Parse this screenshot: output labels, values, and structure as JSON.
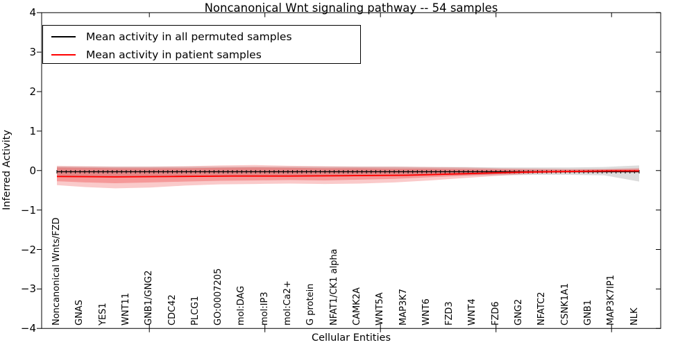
{
  "chart_data": {
    "type": "line",
    "title": "Noncanonical Wnt signaling pathway -- 54 samples",
    "xlabel": "Cellular Entities",
    "ylabel": "Inferred Activity",
    "ylim": [
      -4,
      4
    ],
    "ytick_values": [
      4,
      3,
      2,
      1,
      0,
      -1,
      -2,
      -3,
      -4
    ],
    "ytick_labels": [
      "4",
      "3",
      "2",
      "1",
      "0",
      "−1",
      "−2",
      "−3",
      "−4"
    ],
    "categories": [
      "Noncanonical Wnts/FZD",
      "GNAS",
      "YES1",
      "WNT11",
      "GNB1/GNG2",
      "CDC42",
      "PLCG1",
      "GO:0007205",
      "mol:DAG",
      "mol:IP3",
      "mol:Ca2+",
      "G protein",
      "NFAT1/CK1 alpha",
      "CAMK2A",
      "WNT5A",
      "MAP3K7",
      "WNT6",
      "FZD3",
      "WNT4",
      "FZD6",
      "GNG2",
      "NFATC2",
      "CSNK1A1",
      "GNB1",
      "MAP3K7IP1",
      "NLK"
    ],
    "major_tick_category_indices": [
      4,
      9,
      14,
      19,
      24
    ],
    "grid": false,
    "legend_position": "upper left",
    "series": [
      {
        "name": "Mean activity in all permuted samples",
        "color": "#000000",
        "marker": "+",
        "n_marker_points": 127,
        "t": [
          0,
          1
        ],
        "values": [
          -0.03,
          -0.03
        ]
      },
      {
        "name": "Mean activity in patient samples",
        "color": "#ff0000",
        "t": [
          0,
          0.1,
          0.2,
          0.3,
          0.4,
          0.5,
          0.6,
          0.65,
          0.7,
          0.75,
          0.8,
          0.85,
          0.9,
          0.95,
          1
        ],
        "values": [
          -0.15,
          -0.16,
          -0.15,
          -0.14,
          -0.14,
          -0.13,
          -0.12,
          -0.1,
          -0.08,
          -0.06,
          -0.04,
          -0.03,
          -0.02,
          -0.01,
          -0.01
        ]
      }
    ],
    "bands": [
      {
        "name": "permuted-samples-range",
        "color": "rgba(128,128,128,0.28)",
        "t": [
          0,
          0.05,
          0.1,
          0.16,
          0.22,
          0.28,
          0.34,
          0.4,
          0.46,
          0.52,
          0.58,
          0.64,
          0.7,
          0.76,
          0.82,
          0.88,
          0.94,
          1
        ],
        "top": [
          0.1,
          0.1,
          0.1,
          0.1,
          0.1,
          0.1,
          0.1,
          0.1,
          0.1,
          0.1,
          0.1,
          0.09,
          0.09,
          0.08,
          0.08,
          0.08,
          0.09,
          0.13
        ],
        "bottom": [
          -0.14,
          -0.14,
          -0.14,
          -0.14,
          -0.14,
          -0.13,
          -0.13,
          -0.13,
          -0.13,
          -0.13,
          -0.12,
          -0.12,
          -0.12,
          -0.12,
          -0.11,
          -0.11,
          -0.12,
          -0.28
        ]
      },
      {
        "name": "patient-samples-range-outer",
        "color": "rgba(236,50,50,0.26)",
        "t": [
          0,
          0.05,
          0.1,
          0.16,
          0.22,
          0.28,
          0.34,
          0.4,
          0.46,
          0.52,
          0.58,
          0.64,
          0.7,
          0.76,
          0.82,
          0.88,
          0.94,
          1
        ],
        "top": [
          0.12,
          0.11,
          0.1,
          0.1,
          0.11,
          0.13,
          0.14,
          0.12,
          0.11,
          0.1,
          0.1,
          0.09,
          0.08,
          0.06,
          0.05,
          0.04,
          0.04,
          0.06
        ],
        "bottom": [
          -0.37,
          -0.42,
          -0.45,
          -0.43,
          -0.38,
          -0.35,
          -0.34,
          -0.33,
          -0.34,
          -0.33,
          -0.3,
          -0.25,
          -0.19,
          -0.13,
          -0.08,
          -0.06,
          -0.05,
          -0.05
        ]
      },
      {
        "name": "patient-samples-range-inner",
        "color": "rgba(236,50,50,0.32)",
        "t": [
          0,
          0.05,
          0.1,
          0.16,
          0.22,
          0.28,
          0.34,
          0.4,
          0.46,
          0.52,
          0.58,
          0.64,
          0.7,
          0.76,
          0.82,
          0.88,
          0.94,
          1
        ],
        "top": [
          0.08,
          0.07,
          0.06,
          0.06,
          0.06,
          0.07,
          0.08,
          0.07,
          0.06,
          0.06,
          0.05,
          0.05,
          0.04,
          0.03,
          0.02,
          0.02,
          0.03,
          0.04
        ],
        "bottom": [
          -0.27,
          -0.3,
          -0.32,
          -0.3,
          -0.28,
          -0.26,
          -0.25,
          -0.24,
          -0.25,
          -0.23,
          -0.21,
          -0.17,
          -0.13,
          -0.09,
          -0.06,
          -0.04,
          -0.03,
          -0.03
        ]
      }
    ]
  }
}
